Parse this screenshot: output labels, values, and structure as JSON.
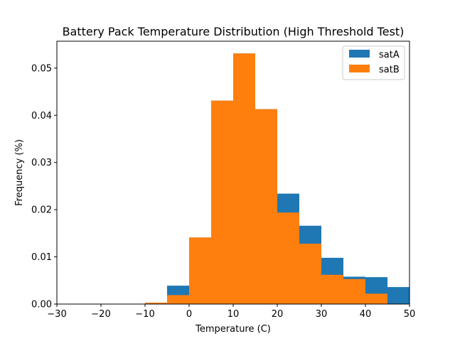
{
  "chart_data": {
    "type": "bar",
    "title": "Battery Pack Temperature Distribution (High Threshold Test)",
    "xlabel": "Temperature (C)",
    "ylabel": "Frequency (%)",
    "xlim": [
      -30,
      50
    ],
    "ylim": [
      0,
      0.0557
    ],
    "xticks": [
      -30,
      -20,
      -10,
      0,
      10,
      20,
      30,
      40,
      50
    ],
    "xtick_labels": [
      "−30",
      "−20",
      "−10",
      "0",
      "10",
      "20",
      "30",
      "40",
      "50"
    ],
    "yticks": [
      0,
      0.01,
      0.02,
      0.03,
      0.04,
      0.05
    ],
    "ytick_labels": [
      "0.00",
      "0.01",
      "0.02",
      "0.03",
      "0.04",
      "0.05"
    ],
    "bin_edges": [
      -10,
      -5,
      0,
      5,
      10,
      15,
      20,
      25,
      30,
      35,
      40,
      45,
      50
    ],
    "grid": false,
    "legend_position": "top-right",
    "series": [
      {
        "name": "satA",
        "color": "#1f77b4",
        "values": [
          0.0,
          0.0039,
          0.0141,
          0.0431,
          0.0531,
          0.0413,
          0.0234,
          0.0166,
          0.0098,
          0.0058,
          0.0057,
          0.0036
        ]
      },
      {
        "name": "satB",
        "color": "#ff7f0e",
        "values": [
          0.0003,
          0.0019,
          0.0141,
          0.0431,
          0.0531,
          0.0413,
          0.0194,
          0.0128,
          0.0062,
          0.0053,
          0.0022,
          0.0
        ]
      }
    ]
  }
}
